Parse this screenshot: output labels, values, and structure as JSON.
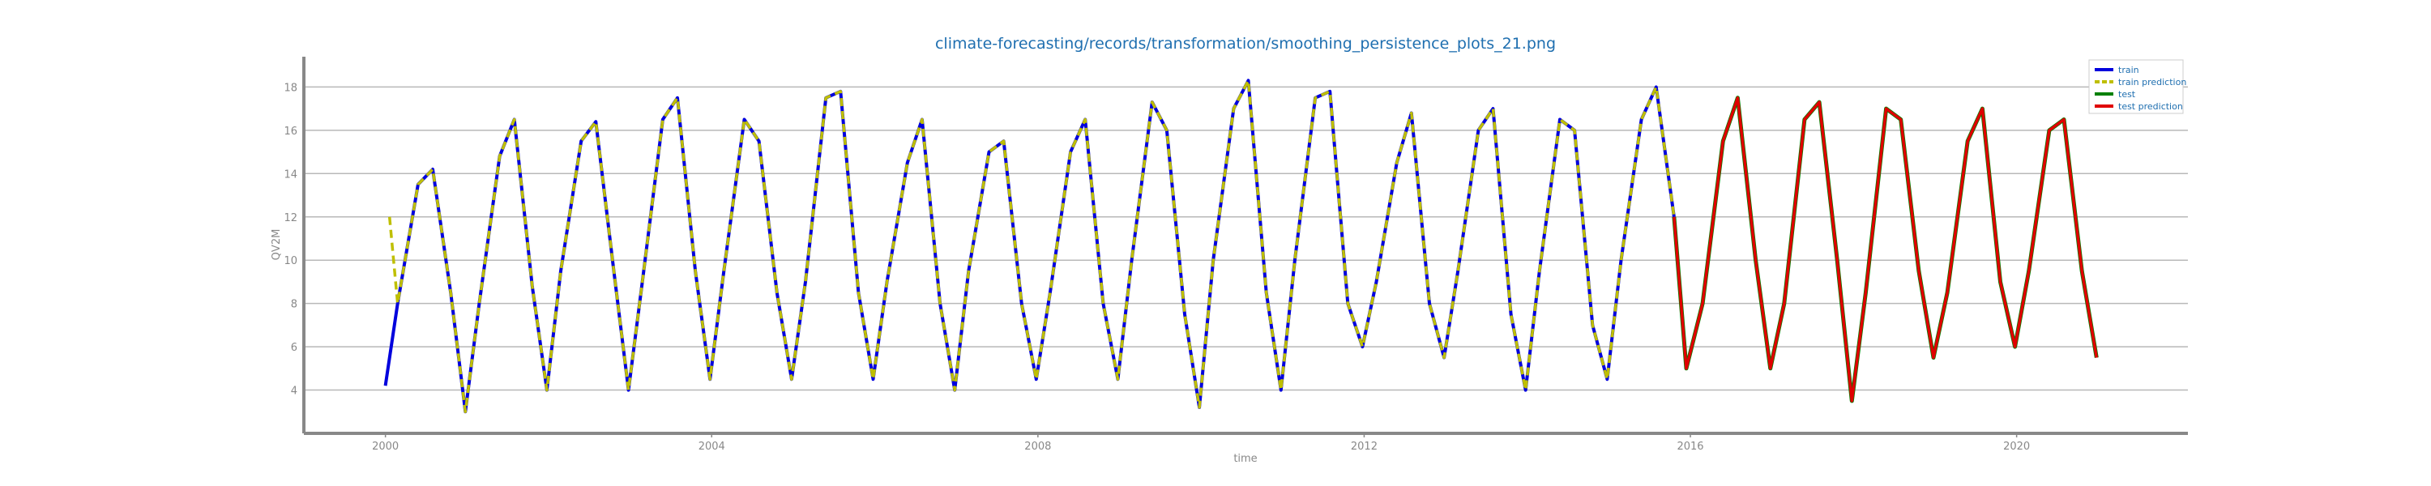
{
  "chart_data": {
    "type": "line",
    "title": "climate-forecasting/records/transformation/smoothing_persistence_plots_21.png",
    "xlabel": "time",
    "ylabel": "QV2M",
    "xlim": [
      1999.0,
      2022.1
    ],
    "ylim": [
      2.0,
      19.4
    ],
    "x_ticks": [
      "2000",
      "2004",
      "2008",
      "2012",
      "2016",
      "2020"
    ],
    "y_ticks": [
      4,
      6,
      8,
      10,
      12,
      14,
      16,
      18
    ],
    "grid": "horizontal",
    "legend_position": "top-right",
    "series_colors": {
      "train": "#0000dd",
      "train prediction": "#bfbf00",
      "test": "#008000",
      "test prediction": "#e00000"
    },
    "series": [
      {
        "name": "train",
        "x": [
          2000.0,
          2000.15,
          2000.4,
          2000.58,
          2000.8,
          2000.98,
          2001.15,
          2001.4,
          2001.58,
          2001.8,
          2001.98,
          2002.15,
          2002.4,
          2002.58,
          2002.8,
          2002.98,
          2003.15,
          2003.4,
          2003.58,
          2003.8,
          2003.98,
          2004.15,
          2004.4,
          2004.58,
          2004.8,
          2004.98,
          2005.15,
          2005.4,
          2005.58,
          2005.8,
          2005.98,
          2006.15,
          2006.4,
          2006.58,
          2006.8,
          2006.98,
          2007.15,
          2007.4,
          2007.58,
          2007.8,
          2007.98,
          2008.15,
          2008.4,
          2008.58,
          2008.8,
          2008.98,
          2009.15,
          2009.4,
          2009.58,
          2009.8,
          2009.98,
          2010.15,
          2010.4,
          2010.58,
          2010.8,
          2010.98,
          2011.15,
          2011.4,
          2011.58,
          2011.8,
          2011.98,
          2012.15,
          2012.4,
          2012.58,
          2012.8,
          2012.98,
          2013.15,
          2013.4,
          2013.58,
          2013.8,
          2013.98,
          2014.15,
          2014.4,
          2014.58,
          2014.8,
          2014.98,
          2015.15,
          2015.4,
          2015.58,
          2015.8
        ],
        "values": [
          4.2,
          8.0,
          13.5,
          14.2,
          8.5,
          3.0,
          8.0,
          14.8,
          16.5,
          8.8,
          4.0,
          9.5,
          15.5,
          16.4,
          9.5,
          4.0,
          9.0,
          16.5,
          17.5,
          9.5,
          4.5,
          9.5,
          16.5,
          15.5,
          8.5,
          4.5,
          9.0,
          17.5,
          17.8,
          8.5,
          4.5,
          9.0,
          14.5,
          16.5,
          8.0,
          4.0,
          9.5,
          15.0,
          15.5,
          8.0,
          4.5,
          8.5,
          15.0,
          16.5,
          8.0,
          4.5,
          10.0,
          17.3,
          16.0,
          7.5,
          3.2,
          10.0,
          17.0,
          18.3,
          8.5,
          4.0,
          10.0,
          17.5,
          17.8,
          8.0,
          6.0,
          9.0,
          14.5,
          16.8,
          8.0,
          5.5,
          9.5,
          16.0,
          17.0,
          7.5,
          4.0,
          9.5,
          16.5,
          16.0,
          7.0,
          4.5,
          10.0,
          16.5,
          18.0,
          12.0
        ],
        "data_labels": []
      },
      {
        "name": "train prediction",
        "x": [
          2000.05,
          2000.15,
          2000.4,
          2000.58,
          2000.8,
          2000.98,
          2001.15,
          2001.4,
          2001.58,
          2001.8,
          2001.98,
          2002.15,
          2002.4,
          2002.58,
          2002.8,
          2002.98,
          2003.15,
          2003.4,
          2003.58,
          2003.8,
          2003.98,
          2004.15,
          2004.4,
          2004.58,
          2004.8,
          2004.98,
          2005.15,
          2005.4,
          2005.58,
          2005.8,
          2005.98,
          2006.15,
          2006.4,
          2006.58,
          2006.8,
          2006.98,
          2007.15,
          2007.4,
          2007.58,
          2007.8,
          2007.98,
          2008.15,
          2008.4,
          2008.58,
          2008.8,
          2008.98,
          2009.15,
          2009.4,
          2009.58,
          2009.8,
          2009.98,
          2010.15,
          2010.4,
          2010.58,
          2010.8,
          2010.98,
          2011.15,
          2011.4,
          2011.58,
          2011.8,
          2011.98,
          2012.15,
          2012.4,
          2012.58,
          2012.8,
          2012.98,
          2013.15,
          2013.4,
          2013.58,
          2013.8,
          2013.98,
          2014.15,
          2014.4,
          2014.58,
          2014.8,
          2014.98,
          2015.15,
          2015.4,
          2015.58,
          2015.8
        ],
        "values": [
          12.0,
          8.0,
          13.5,
          14.2,
          8.5,
          3.0,
          8.0,
          14.8,
          16.5,
          8.8,
          4.0,
          9.5,
          15.5,
          16.4,
          9.5,
          4.0,
          9.0,
          16.5,
          17.5,
          9.5,
          4.5,
          9.5,
          16.5,
          15.5,
          8.5,
          4.5,
          9.0,
          17.5,
          17.8,
          8.5,
          4.5,
          9.0,
          14.5,
          16.5,
          8.0,
          4.0,
          9.5,
          15.0,
          15.5,
          8.0,
          4.5,
          8.5,
          15.0,
          16.5,
          8.0,
          4.5,
          10.0,
          17.3,
          16.0,
          7.5,
          3.2,
          10.0,
          17.0,
          18.3,
          8.5,
          4.0,
          10.0,
          17.5,
          17.8,
          8.0,
          6.0,
          9.0,
          14.5,
          16.8,
          8.0,
          5.5,
          9.5,
          16.0,
          17.0,
          7.5,
          4.0,
          9.5,
          16.5,
          16.0,
          7.0,
          4.5,
          10.0,
          16.5,
          18.0,
          12.0
        ],
        "data_labels": []
      },
      {
        "name": "test",
        "x": [
          2015.8,
          2015.95,
          2016.15,
          2016.4,
          2016.58,
          2016.8,
          2016.98,
          2017.15,
          2017.4,
          2017.58,
          2017.8,
          2017.98,
          2018.15,
          2018.4,
          2018.58,
          2018.8,
          2018.98,
          2019.15,
          2019.4,
          2019.58,
          2019.8,
          2019.98,
          2020.15,
          2020.4,
          2020.58,
          2020.8,
          2020.98
        ],
        "values": [
          12.0,
          5.0,
          8.0,
          15.5,
          17.5,
          10.0,
          5.0,
          8.0,
          16.5,
          17.3,
          10.0,
          3.5,
          8.5,
          17.0,
          16.5,
          9.5,
          5.5,
          8.5,
          15.5,
          17.0,
          9.0,
          6.0,
          9.5,
          16.0,
          16.5,
          9.5,
          5.5
        ],
        "data_labels": []
      },
      {
        "name": "test prediction",
        "x": [
          2015.8,
          2015.95,
          2016.15,
          2016.4,
          2016.58,
          2016.8,
          2016.98,
          2017.15,
          2017.4,
          2017.58,
          2017.8,
          2017.98,
          2018.15,
          2018.4,
          2018.58,
          2018.8,
          2018.98,
          2019.15,
          2019.4,
          2019.58,
          2019.8,
          2019.98,
          2020.15,
          2020.4,
          2020.58,
          2020.8,
          2020.98
        ],
        "values": [
          12.0,
          5.0,
          8.0,
          15.5,
          17.5,
          10.0,
          5.0,
          8.0,
          16.5,
          17.3,
          10.0,
          3.5,
          8.5,
          17.0,
          16.5,
          9.5,
          5.5,
          8.5,
          15.5,
          17.0,
          9.0,
          6.0,
          9.5,
          16.0,
          16.5,
          9.5,
          5.5
        ],
        "data_labels": []
      }
    ]
  }
}
